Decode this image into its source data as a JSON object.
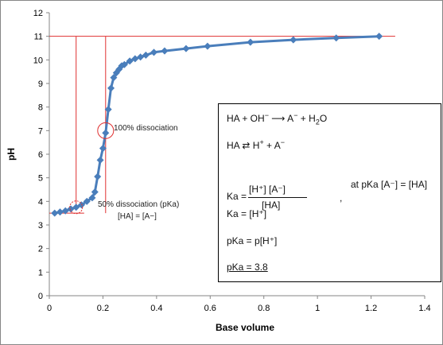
{
  "chart_data": {
    "type": "line",
    "title": "",
    "xlabel": "Base volume",
    "ylabel": "pH",
    "xlim": [
      0,
      1.4
    ],
    "ylim": [
      0,
      12
    ],
    "x_ticks": [
      "0",
      "0.2",
      "0.4",
      "0.6",
      "0.8",
      "1",
      "1.2",
      "1.4"
    ],
    "y_ticks": [
      "0",
      "1",
      "2",
      "3",
      "4",
      "5",
      "6",
      "7",
      "8",
      "9",
      "10",
      "11",
      "12"
    ],
    "grid": false,
    "series": [
      {
        "color": "#4a7ebb",
        "marker": "diamond",
        "points": [
          [
            0.02,
            3.5
          ],
          [
            0.04,
            3.55
          ],
          [
            0.06,
            3.6
          ],
          [
            0.08,
            3.68
          ],
          [
            0.1,
            3.75
          ],
          [
            0.12,
            3.85
          ],
          [
            0.14,
            4.0
          ],
          [
            0.16,
            4.15
          ],
          [
            0.17,
            4.4
          ],
          [
            0.18,
            5.05
          ],
          [
            0.19,
            5.75
          ],
          [
            0.2,
            6.25
          ],
          [
            0.21,
            6.9
          ],
          [
            0.22,
            7.9
          ],
          [
            0.23,
            8.8
          ],
          [
            0.24,
            9.25
          ],
          [
            0.25,
            9.45
          ],
          [
            0.26,
            9.6
          ],
          [
            0.27,
            9.75
          ],
          [
            0.28,
            9.8
          ],
          [
            0.3,
            9.95
          ],
          [
            0.32,
            10.05
          ],
          [
            0.34,
            10.12
          ],
          [
            0.36,
            10.2
          ],
          [
            0.39,
            10.32
          ],
          [
            0.43,
            10.38
          ],
          [
            0.51,
            10.48
          ],
          [
            0.59,
            10.58
          ],
          [
            0.75,
            10.75
          ],
          [
            0.91,
            10.85
          ],
          [
            1.07,
            10.93
          ],
          [
            1.23,
            11.0
          ]
        ]
      }
    ],
    "reference_lines_color": "#e03030",
    "reference_lines": [
      {
        "kind": "horizontal",
        "y": 11,
        "x_from": 0,
        "x_to": 1.29
      },
      {
        "kind": "horizontal",
        "y": 3.5,
        "x_from": 0,
        "x_to": 0.13
      },
      {
        "kind": "vertical",
        "x": 0.1,
        "y_from": 3.75,
        "y_to": 11
      },
      {
        "kind": "vertical",
        "x": 0.21,
        "y_from": 3.5,
        "y_to": 11
      }
    ],
    "markers": [
      {
        "x": 0.1,
        "y": 3.75
      },
      {
        "x": 0.21,
        "y": 7.0
      }
    ],
    "annotations": [
      {
        "text": "100% dissociation",
        "x": 0.21,
        "y": 7.0
      },
      {
        "text": "50% dissociation (pKa)",
        "x": 0.1,
        "y": 3.75
      },
      {
        "text": "[HA] = [A−]",
        "x": 0.1,
        "y": 3.75
      }
    ],
    "box_text": {
      "line1": {
        "lhs": "HA + OH",
        "lhs_sup": "−",
        "arrow": "⟶",
        "mid": "A",
        "mid_sup": "−",
        "plus": "+",
        "rhs": "H",
        "rhs_sub": "2",
        "rhs_end": "O"
      },
      "line2": {
        "lhs": "HA",
        "arrow": "⇄",
        "mid": "H",
        "mid_sup": "+",
        "plus": "+",
        "rhs": "A",
        "rhs_sup": "−"
      },
      "ka_frac": {
        "lhs": "Ka =",
        "num": "[H⁺]  [A⁻]",
        "den": "[HA]",
        "separator": ",",
        "note": "at pKa  [A⁻] = [HA]"
      },
      "ka_eq": "Ka = [H⁺]",
      "pka_eq": "pKa = p[H⁺]",
      "pka_value": "pKa = 3.8"
    }
  }
}
